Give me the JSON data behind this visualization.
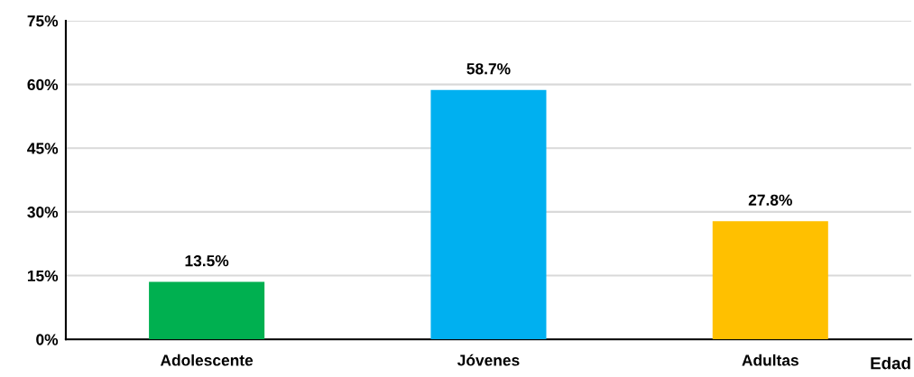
{
  "chart_data": {
    "type": "bar",
    "xlabel": "Edad",
    "categories": [
      "Adolescente",
      "Jóvenes",
      "Adultas"
    ],
    "values": [
      13.5,
      58.7,
      27.8
    ],
    "colors": [
      "#00b050",
      "#00b0f0",
      "#ffc000"
    ],
    "value_labels": [
      "13.5%",
      "58.7%",
      "27.8%"
    ],
    "ylim": [
      0,
      75
    ],
    "yticks": [
      {
        "value": 0,
        "label": "0%"
      },
      {
        "value": 15,
        "label": "15%"
      },
      {
        "value": 30,
        "label": "30%"
      },
      {
        "value": 45,
        "label": "45%"
      },
      {
        "value": 60,
        "label": "60%"
      },
      {
        "value": 75,
        "label": "75%"
      }
    ],
    "grid": "y",
    "legend": false
  }
}
